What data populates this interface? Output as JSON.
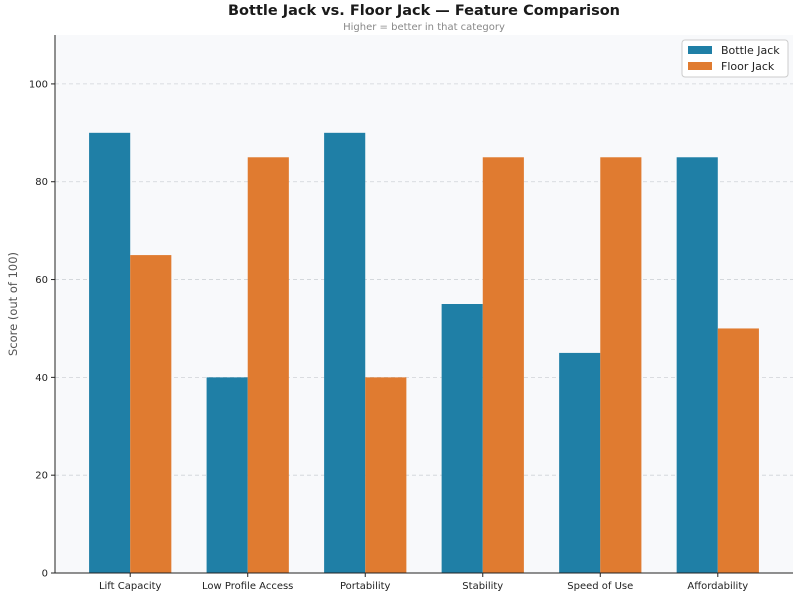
{
  "chart_data": {
    "type": "bar",
    "title": "Bottle Jack vs. Floor Jack — Feature Comparison",
    "subtitle": "Higher = better in that category",
    "xlabel": "",
    "ylabel": "Score (out of 100)",
    "ylim": [
      0,
      110
    ],
    "yticks": [
      0,
      20,
      40,
      60,
      80,
      100
    ],
    "grid": true,
    "legend_position": "top-right",
    "categories": [
      "Lift Capacity",
      "Low Profile Access",
      "Portability",
      "Stability",
      "Speed of Use",
      "Affordability"
    ],
    "series": [
      {
        "name": "Bottle Jack",
        "color": "#1f7fa6",
        "values": [
          90,
          40,
          90,
          55,
          45,
          85
        ]
      },
      {
        "name": "Floor Jack",
        "color": "#e07b30",
        "values": [
          65,
          85,
          40,
          85,
          85,
          50
        ]
      }
    ],
    "plot_background": "#f8f9fb"
  }
}
